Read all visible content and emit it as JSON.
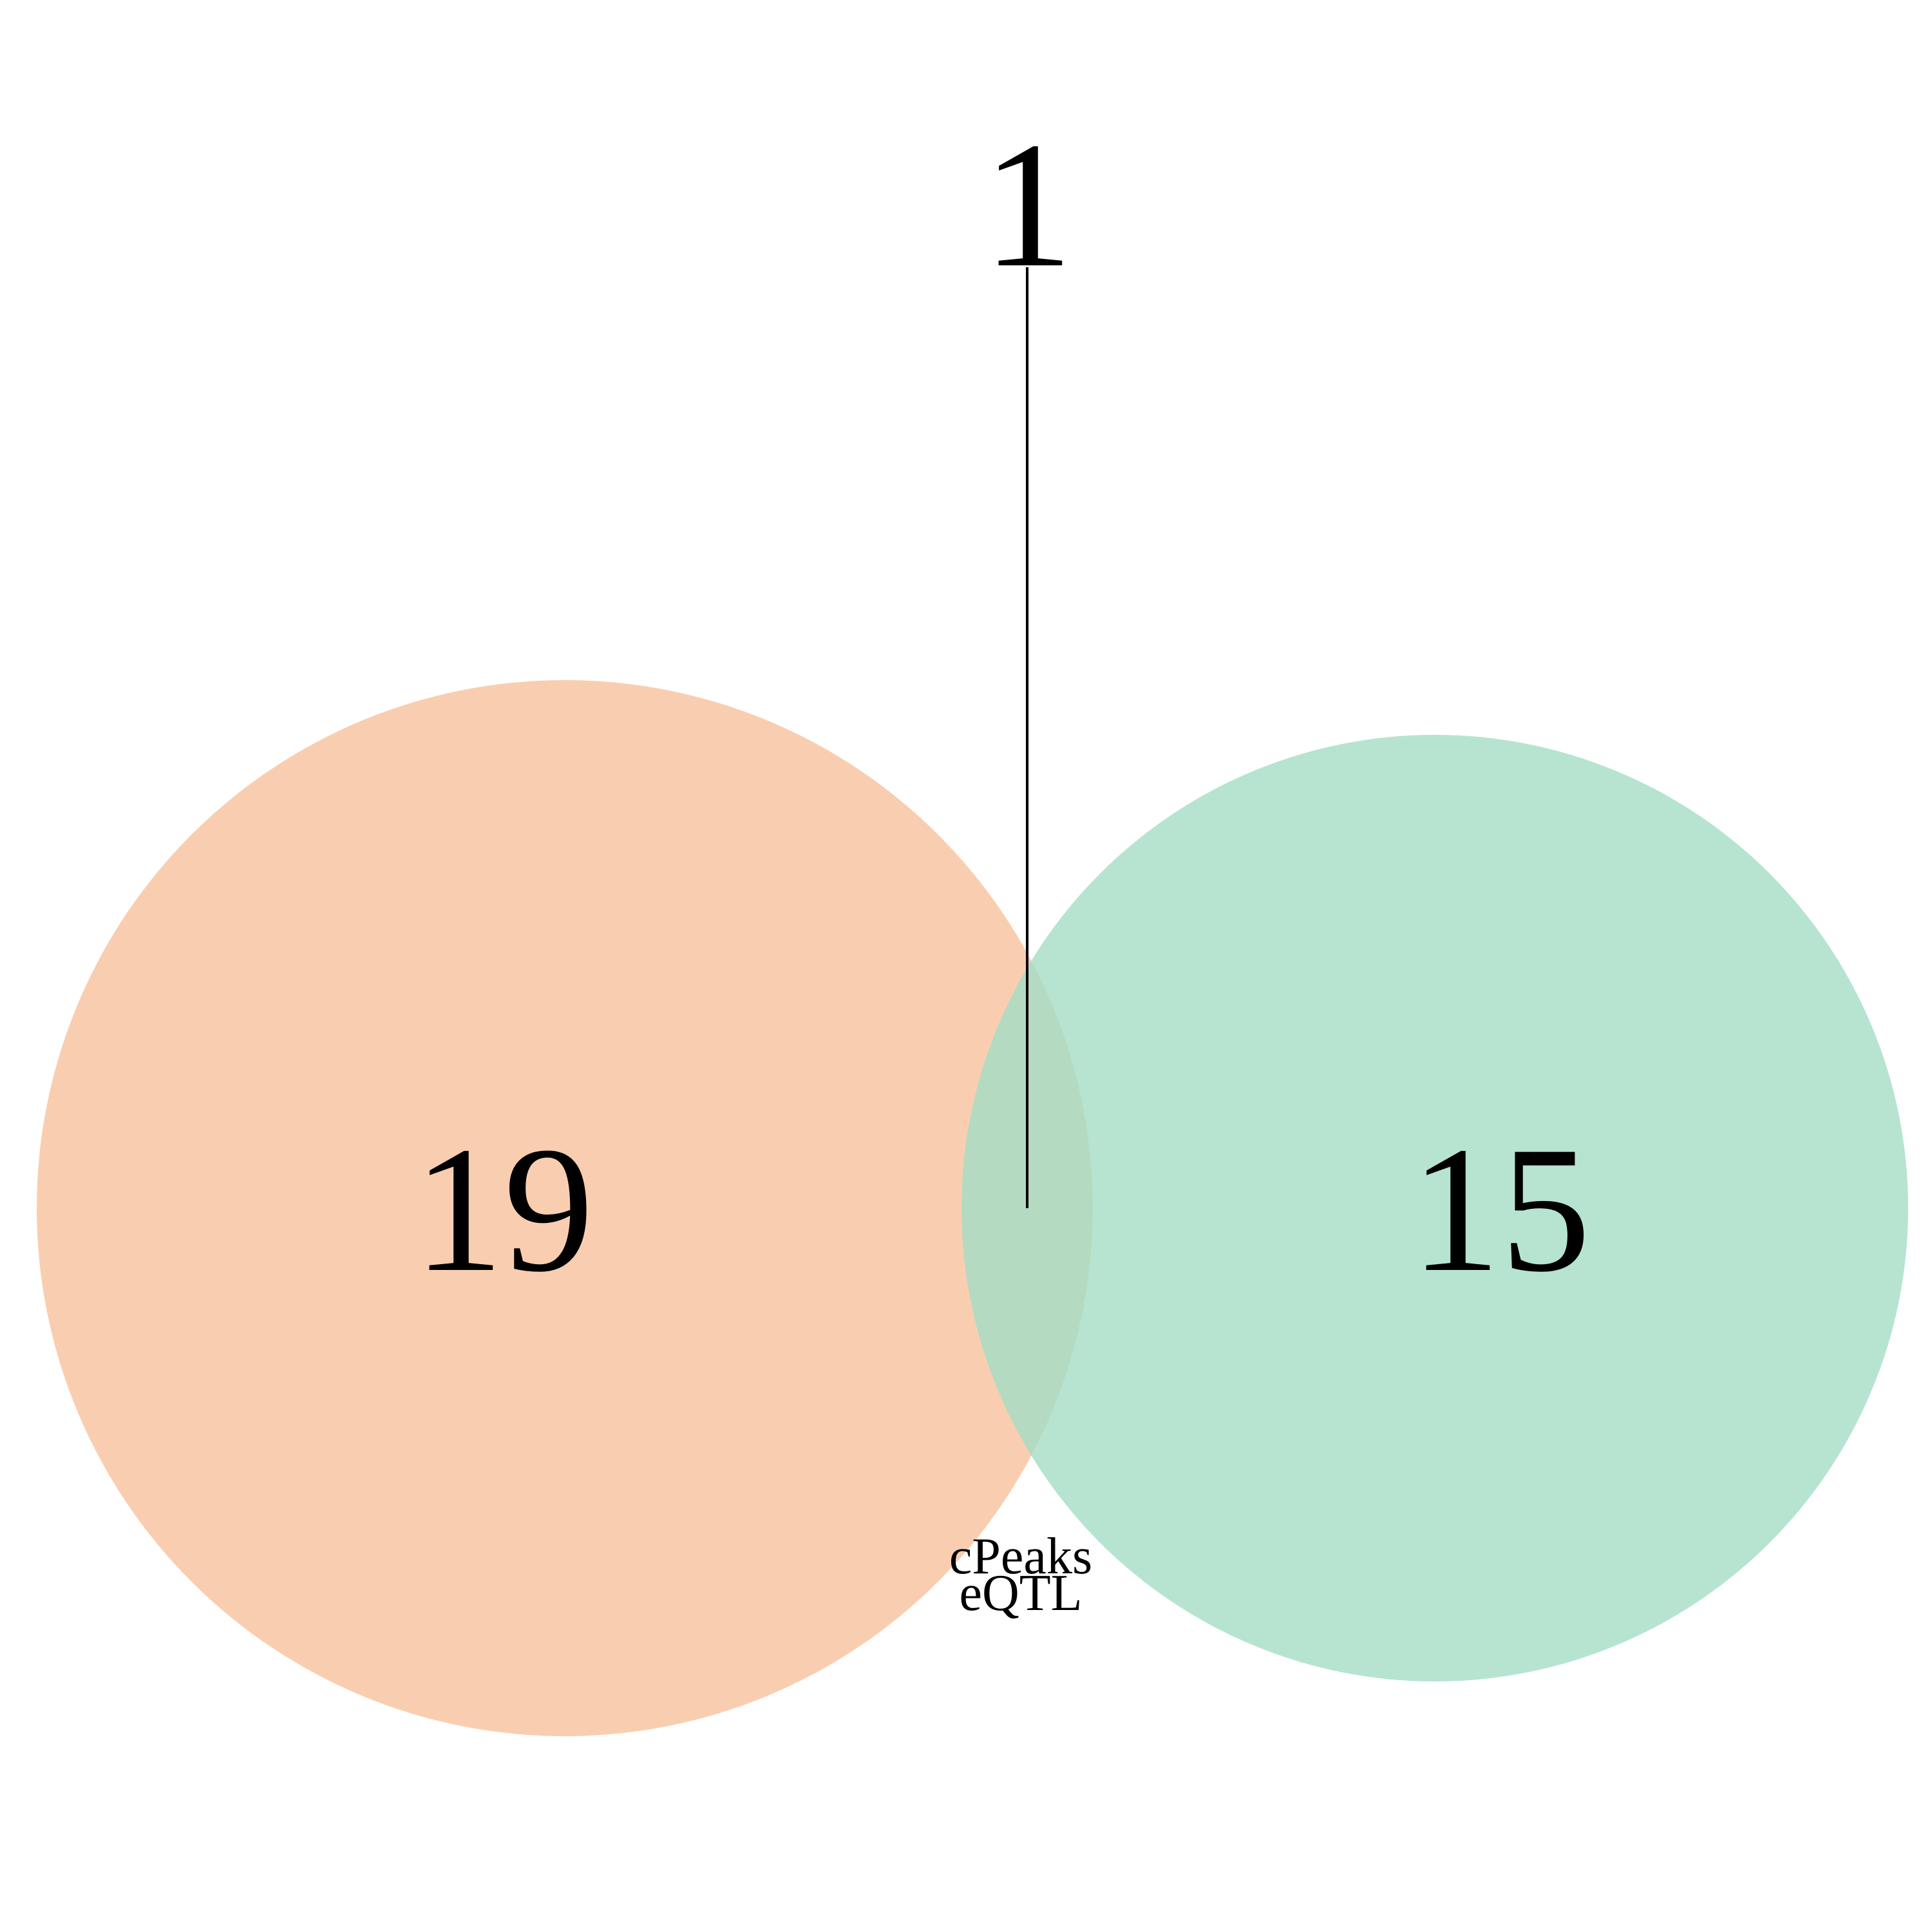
{
  "diagram": {
    "type": "venn",
    "sets": [
      {
        "label": "cPeaks",
        "only_count": "19",
        "color": "#F9CEB0"
      },
      {
        "label": "eQTL",
        "only_count": "15",
        "color": "#B7E4D1"
      }
    ],
    "intersection": {
      "count": "1",
      "color": "#B4DBC2"
    },
    "background": "#FFFFFF"
  }
}
